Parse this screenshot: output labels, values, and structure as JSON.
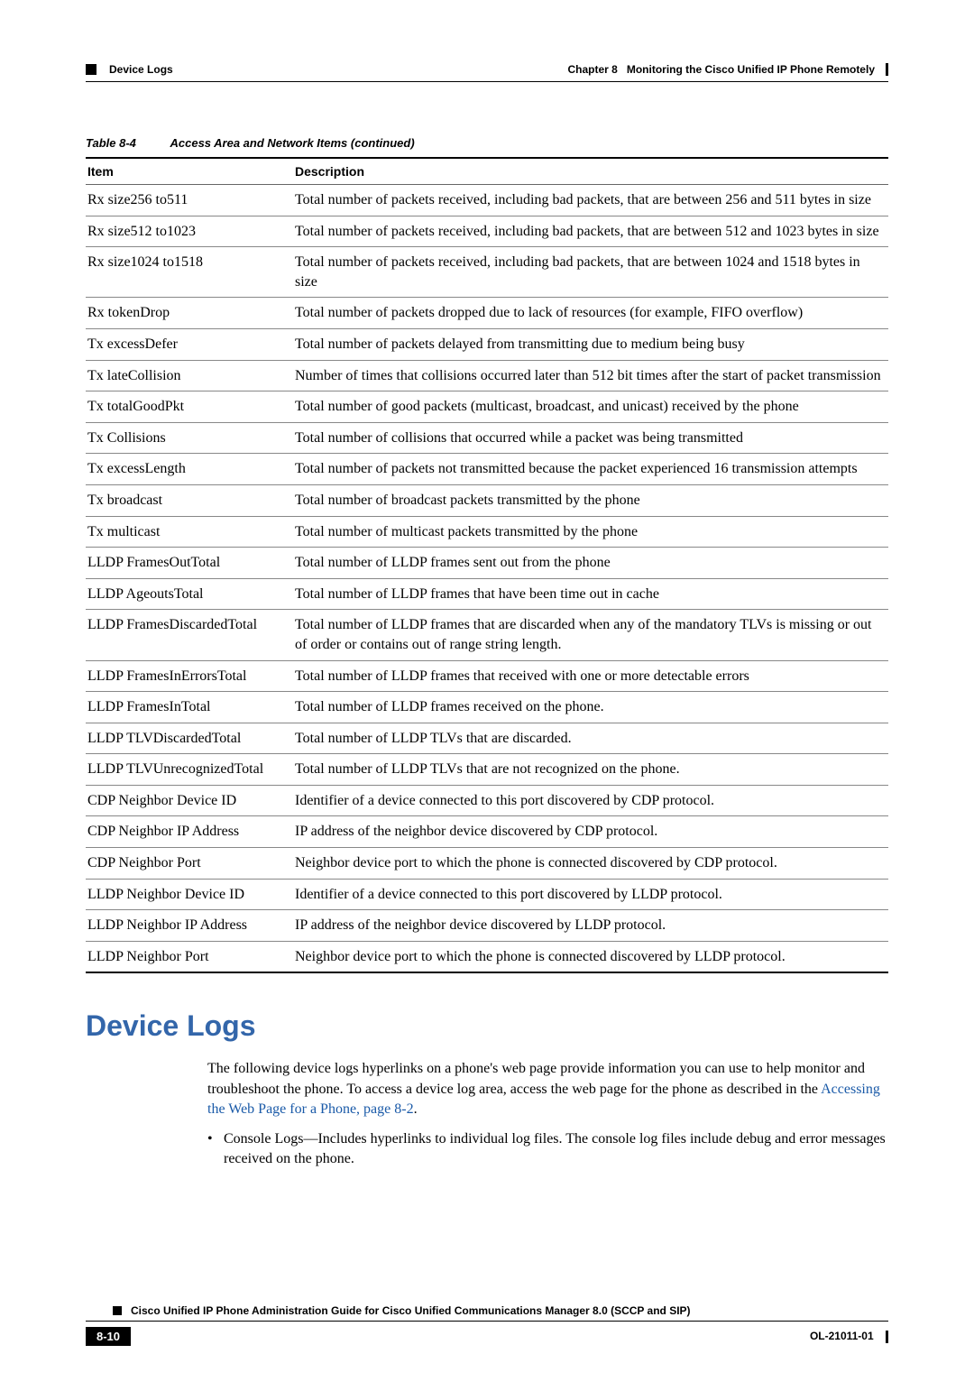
{
  "header": {
    "section_label": "Device Logs",
    "chapter_label": "Chapter 8",
    "chapter_title": "Monitoring the Cisco Unified IP Phone Remotely"
  },
  "table": {
    "number": "Table 8-4",
    "title": "Access Area and Network Items (continued)",
    "columns": [
      "Item",
      "Description"
    ],
    "rows": [
      [
        "Rx size256 to511",
        "Total number of packets received, including bad packets, that are between 256 and 511 bytes in size"
      ],
      [
        "Rx size512 to1023",
        "Total number of packets received, including bad packets, that are between 512 and 1023 bytes in size"
      ],
      [
        "Rx size1024 to1518",
        "Total number of packets received, including bad packets, that are between 1024 and 1518 bytes in size"
      ],
      [
        "Rx tokenDrop",
        "Total number of packets dropped due to lack of resources (for example, FIFO overflow)"
      ],
      [
        "Tx excessDefer",
        "Total number of packets delayed from transmitting due to medium being busy"
      ],
      [
        "Tx lateCollision",
        "Number of times that collisions occurred later than 512 bit times after the start of packet transmission"
      ],
      [
        "Tx totalGoodPkt",
        "Total number of good packets (multicast, broadcast, and unicast) received by the phone"
      ],
      [
        "Tx Collisions",
        "Total number of collisions that occurred while a packet was being transmitted"
      ],
      [
        "Tx excessLength",
        "Total number of packets not transmitted because the packet experienced 16 transmission attempts"
      ],
      [
        "Tx broadcast",
        "Total number of broadcast packets transmitted by the phone"
      ],
      [
        "Tx multicast",
        "Total number of multicast packets transmitted by the phone"
      ],
      [
        "LLDP FramesOutTotal",
        "Total number of LLDP frames sent out from the phone"
      ],
      [
        "LLDP AgeoutsTotal",
        "Total number of LLDP frames that have been time out in cache"
      ],
      [
        "LLDP FramesDiscardedTotal",
        "Total number of LLDP frames that are discarded when any of the mandatory TLVs is missing or out of order or contains out of range string length."
      ],
      [
        "LLDP FramesInErrorsTotal",
        "Total number of LLDP frames that received with one or more detectable errors"
      ],
      [
        "LLDP FramesInTotal",
        "Total number of LLDP frames received on the phone."
      ],
      [
        "LLDP TLVDiscardedTotal",
        "Total number of LLDP TLVs that are discarded."
      ],
      [
        "LLDP TLVUnrecognizedTotal",
        "Total number of LLDP TLVs that are not recognized on the phone."
      ],
      [
        "CDP Neighbor Device ID",
        "Identifier of a device connected to this port discovered by CDP protocol."
      ],
      [
        "CDP Neighbor IP Address",
        "IP address of the neighbor device discovered by CDP protocol."
      ],
      [
        "CDP Neighbor Port",
        "Neighbor device port to which the phone is connected discovered by CDP protocol."
      ],
      [
        "LLDP Neighbor Device ID",
        "Identifier of a device connected to this port discovered by LLDP protocol."
      ],
      [
        "LLDP Neighbor IP Address",
        "IP address of the neighbor device discovered by LLDP protocol."
      ],
      [
        "LLDP Neighbor Port",
        "Neighbor device port to which the phone is connected discovered by LLDP protocol."
      ]
    ]
  },
  "section": {
    "heading": "Device Logs",
    "para_pre": "The following device logs hyperlinks on a phone's web page provide information you can use to help monitor and troubleshoot the phone. To access a device log area, access the web page for the phone as described in the ",
    "link_text": "Accessing the Web Page for a Phone, page 8-2",
    "para_post": ".",
    "bullet": "Console Logs—Includes hyperlinks to individual log files. The console log files include debug and error messages received on the phone."
  },
  "footer": {
    "guide_title": "Cisco Unified IP Phone Administration Guide for Cisco Unified Communications Manager 8.0 (SCCP and SIP)",
    "page_num": "8-10",
    "doc_id": "OL-21011-01"
  },
  "colors": {
    "heading": "#3366aa",
    "link": "#1a5aa8",
    "text": "#000000"
  }
}
